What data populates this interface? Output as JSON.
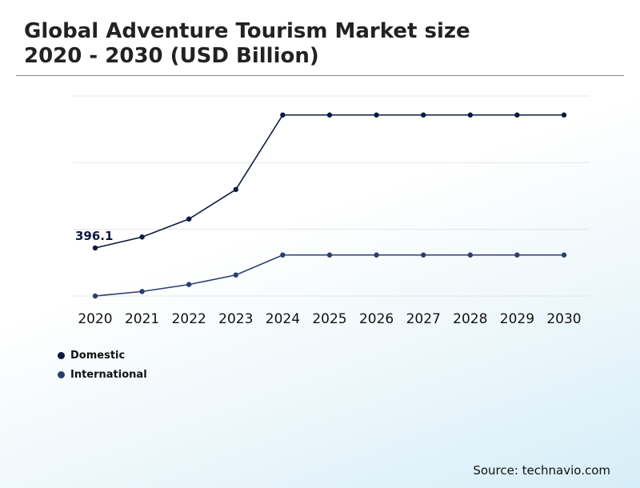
{
  "title_line1": "Global Adventure Tourism Market size",
  "title_line2": "2020 - 2030 (USD Billion)",
  "source": "Source: technavio.com",
  "chart_data": {
    "type": "line",
    "title": "Global Adventure Tourism Market size 2020 - 2030 (USD Billion)",
    "xlabel": "",
    "ylabel": "",
    "x": [
      "2020",
      "2021",
      "2022",
      "2023",
      "2024",
      "2025",
      "2026",
      "2027",
      "2028",
      "2029",
      "2030"
    ],
    "ylim": [
      300,
      700
    ],
    "grid": true,
    "legend_position": "bottom-left",
    "series": [
      {
        "name": "Domestic",
        "color": "#0b1a3d",
        "values": [
          396.1,
          418,
          454,
          513,
          662,
          662,
          662,
          662,
          662,
          662,
          662
        ]
      },
      {
        "name": "International",
        "color": "#2c3e6e",
        "values": [
          300,
          309,
          323,
          342,
          382,
          382,
          382,
          382,
          382,
          382,
          382
        ]
      }
    ],
    "annotations": [
      {
        "series": "Domestic",
        "x": "2020",
        "text": "396.1"
      }
    ]
  }
}
